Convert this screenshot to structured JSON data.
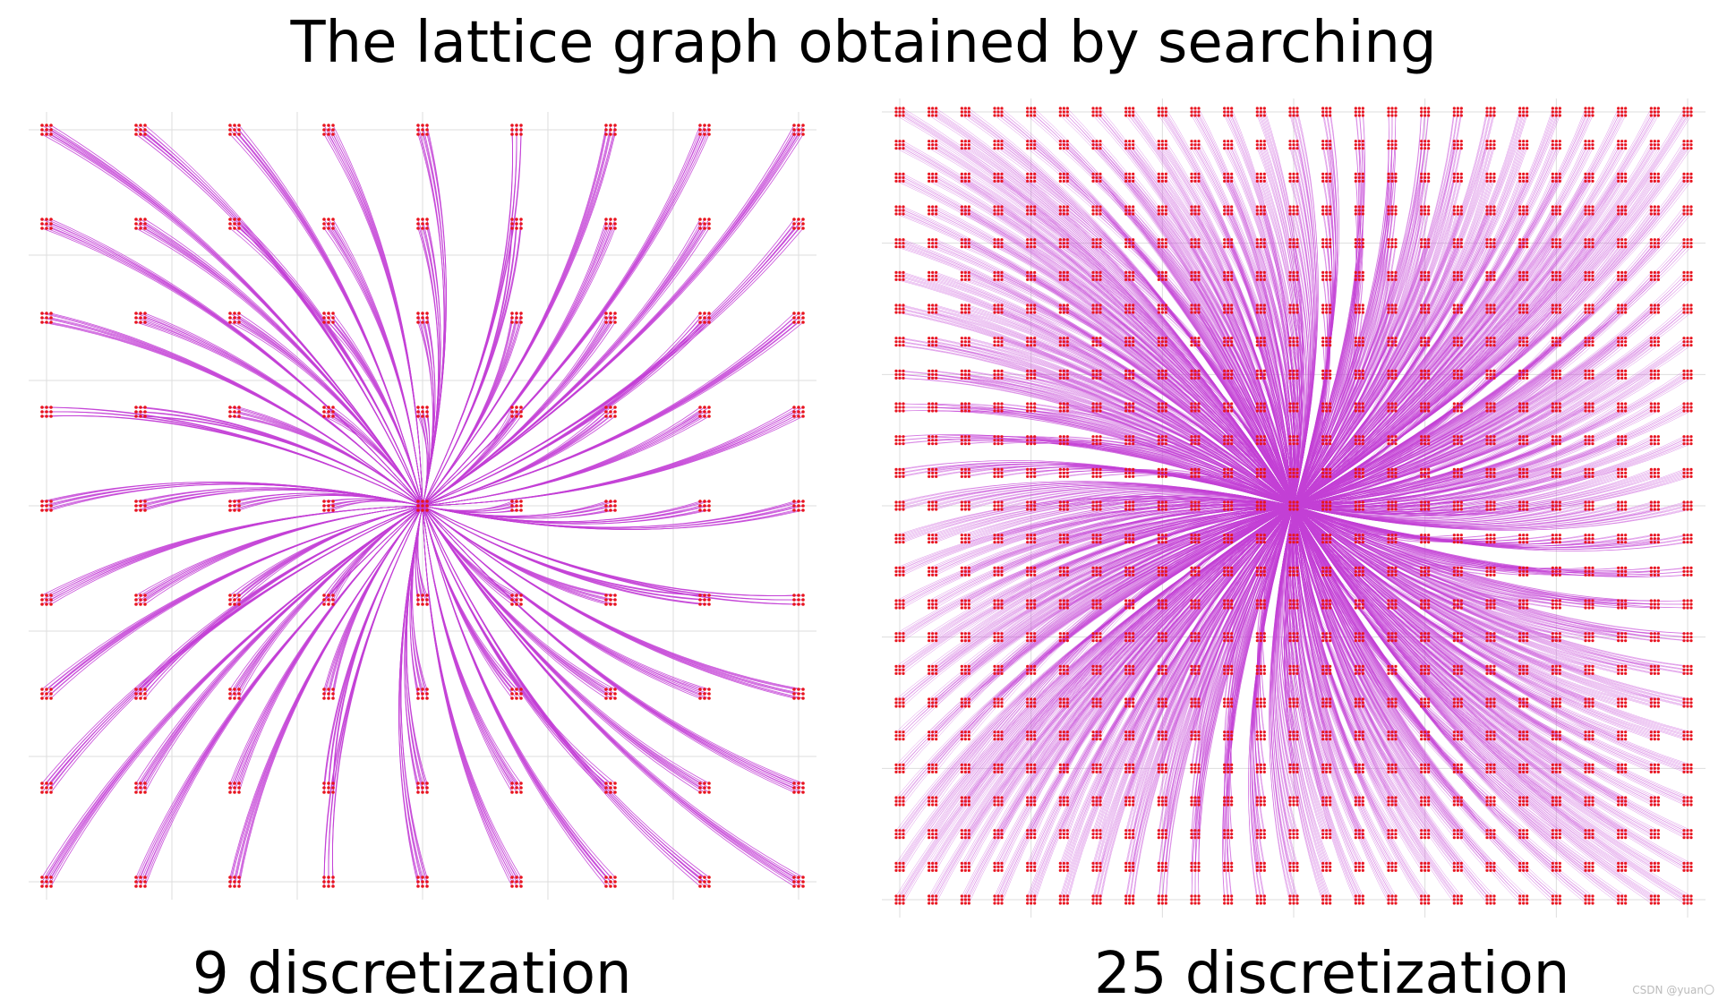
{
  "title": "The lattice graph obtained by searching",
  "panels": [
    {
      "caption": "9 discretization",
      "discretization": 9,
      "grid_cells": 8
    },
    {
      "caption": "25 discretization",
      "discretization": 25,
      "grid_cells": 24
    }
  ],
  "colors": {
    "edge": "#c33fd6",
    "node": "#e8141e",
    "grid": "#dddddd",
    "background": "#ffffff"
  },
  "watermark": "CSDN @yuan〇"
}
